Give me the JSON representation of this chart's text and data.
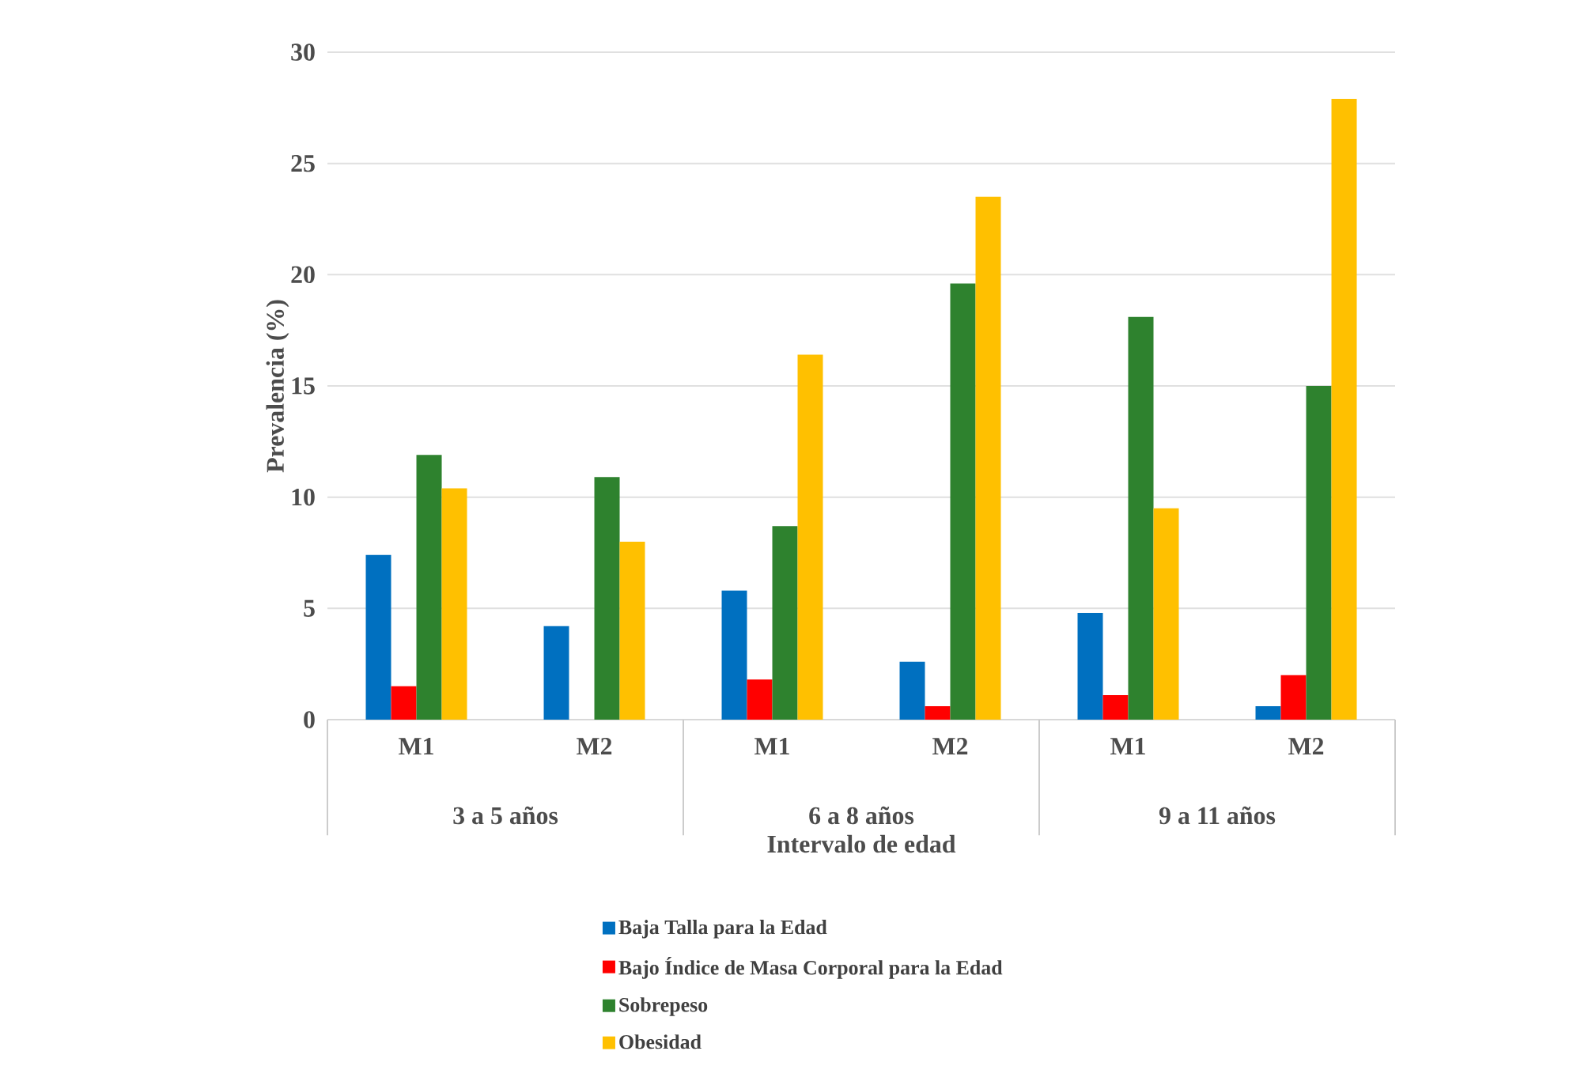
{
  "chart_data": {
    "type": "bar",
    "xlabel": "Intervalo de edad",
    "ylabel": "Prevalencia (%)",
    "categories": [
      "M1",
      "M2",
      "M1",
      "M2",
      "M1",
      "M2"
    ],
    "annotations": [
      "3 a 5 años",
      "6 a 8 años",
      "9 a 11 años"
    ],
    "series": [
      {
        "name": "Baja Talla para la Edad",
        "color": "#0070c0",
        "values": [
          7.4,
          4.2,
          5.8,
          2.6,
          4.8,
          0.6
        ]
      },
      {
        "name": "Bajo Índice de Masa Corporal para la Edad",
        "color": "#ff0000",
        "values": [
          1.5,
          null,
          1.8,
          0.6,
          1.1,
          2.0
        ]
      },
      {
        "name": "Sobrepeso",
        "color": "#2e822e",
        "values": [
          11.9,
          10.9,
          8.7,
          19.6,
          18.1,
          15.0
        ]
      },
      {
        "name": "Obesidad",
        "color": "#ffc000",
        "values": [
          10.4,
          8.0,
          16.4,
          23.5,
          9.5,
          27.9
        ]
      }
    ],
    "ylim": [
      0,
      30
    ],
    "yticks": [
      0,
      5,
      10,
      15,
      20,
      25,
      30
    ],
    "grid": "y",
    "legend": "bottom"
  }
}
